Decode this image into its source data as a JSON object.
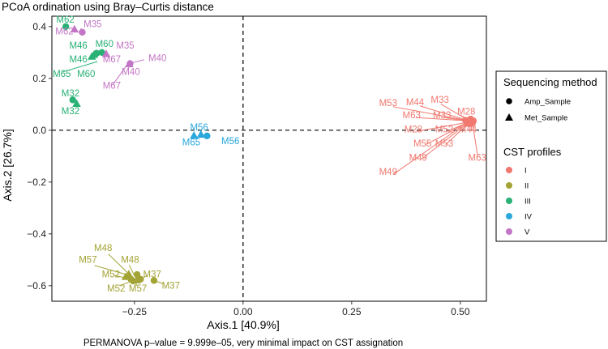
{
  "chart_data": {
    "type": "scatter",
    "title": "PCoA ordination using Bray–Curtis distance",
    "xlabel": "Axis.1   [40.9%]",
    "ylabel": "Axis.2   [26.7%]",
    "caption": "PERMANOVA p–value = 9.999e–05, very minimal impact on CST assignation",
    "xlim": [
      -0.44,
      0.56
    ],
    "ylim": [
      -0.66,
      0.44
    ],
    "x_ticks": [
      -0.25,
      0.0,
      0.25,
      0.5
    ],
    "x_tick_labels": [
      "−0.25",
      "0.00",
      "0.25",
      "0.50"
    ],
    "y_ticks": [
      0.4,
      0.2,
      0.0,
      -0.2,
      -0.4,
      -0.6
    ],
    "y_tick_labels": [
      "0.4",
      "0.2",
      "0.0",
      "−0.2",
      "−0.4",
      "−0.6"
    ],
    "reference_lines": {
      "x": 0,
      "y": 0,
      "style": "dashed"
    },
    "grid": false,
    "legends": [
      {
        "title": "Sequencing method",
        "entries": [
          {
            "label": "Amp_Sample",
            "shape": "circle"
          },
          {
            "label": "Met_Sample",
            "shape": "triangle"
          }
        ]
      },
      {
        "title": "CST profiles",
        "entries": [
          {
            "label": "I",
            "color": "#f0786f"
          },
          {
            "label": "II",
            "color": "#a3a336"
          },
          {
            "label": "III",
            "color": "#29b176"
          },
          {
            "label": "IV",
            "color": "#2aa8dc"
          },
          {
            "label": "V",
            "color": "#c375c6"
          }
        ]
      }
    ],
    "colors": {
      "I": "#f0786f",
      "II": "#a3a336",
      "III": "#29b176",
      "IV": "#2aa8dc",
      "V": "#c375c6"
    },
    "points": [
      {
        "x": -0.408,
        "y": 0.4,
        "shape": "circle",
        "cst": "III"
      },
      {
        "x": -0.388,
        "y": 0.39,
        "shape": "triangle",
        "cst": "V"
      },
      {
        "x": -0.37,
        "y": 0.378,
        "shape": "circle",
        "cst": "V"
      },
      {
        "x": -0.343,
        "y": 0.292,
        "shape": "triangle",
        "cst": "III"
      },
      {
        "x": -0.348,
        "y": 0.285,
        "shape": "triangle",
        "cst": "III"
      },
      {
        "x": -0.337,
        "y": 0.297,
        "shape": "circle",
        "cst": "III"
      },
      {
        "x": -0.325,
        "y": 0.3,
        "shape": "circle",
        "cst": "III"
      },
      {
        "x": -0.315,
        "y": 0.295,
        "shape": "triangle",
        "cst": "V"
      },
      {
        "x": -0.26,
        "y": 0.257,
        "shape": "circle",
        "cst": "V"
      },
      {
        "x": -0.262,
        "y": 0.256,
        "shape": "triangle",
        "cst": "V"
      },
      {
        "x": -0.392,
        "y": 0.117,
        "shape": "circle",
        "cst": "III"
      },
      {
        "x": -0.383,
        "y": 0.103,
        "shape": "triangle",
        "cst": "III"
      },
      {
        "x": -0.113,
        "y": -0.02,
        "shape": "triangle",
        "cst": "IV"
      },
      {
        "x": -0.097,
        "y": -0.016,
        "shape": "triangle",
        "cst": "IV"
      },
      {
        "x": -0.083,
        "y": -0.022,
        "shape": "circle",
        "cst": "IV"
      },
      {
        "x": 0.518,
        "y": 0.037,
        "shape": "triangle",
        "cst": "I"
      },
      {
        "x": 0.522,
        "y": 0.04,
        "shape": "circle",
        "cst": "I"
      },
      {
        "x": 0.515,
        "y": 0.03,
        "shape": "circle",
        "cst": "I"
      },
      {
        "x": 0.526,
        "y": 0.034,
        "shape": "triangle",
        "cst": "I"
      },
      {
        "x": 0.512,
        "y": 0.038,
        "shape": "circle",
        "cst": "I"
      },
      {
        "x": 0.528,
        "y": 0.029,
        "shape": "circle",
        "cst": "I"
      },
      {
        "x": 0.52,
        "y": 0.026,
        "shape": "triangle",
        "cst": "I"
      },
      {
        "x": 0.524,
        "y": 0.043,
        "shape": "circle",
        "cst": "I"
      },
      {
        "x": 0.516,
        "y": 0.033,
        "shape": "triangle",
        "cst": "I"
      },
      {
        "x": 0.53,
        "y": 0.036,
        "shape": "circle",
        "cst": "I"
      },
      {
        "x": -0.244,
        "y": -0.557,
        "shape": "circle",
        "cst": "II"
      },
      {
        "x": -0.263,
        "y": -0.555,
        "shape": "triangle",
        "cst": "II"
      },
      {
        "x": -0.258,
        "y": -0.575,
        "shape": "circle",
        "cst": "II"
      },
      {
        "x": -0.253,
        "y": -0.582,
        "shape": "circle",
        "cst": "II"
      },
      {
        "x": -0.245,
        "y": -0.578,
        "shape": "triangle",
        "cst": "II"
      },
      {
        "x": -0.236,
        "y": -0.575,
        "shape": "circle",
        "cst": "II"
      },
      {
        "x": -0.205,
        "y": -0.58,
        "shape": "circle",
        "cst": "II"
      },
      {
        "x": -0.27,
        "y": -0.565,
        "shape": "triangle",
        "cst": "II"
      }
    ],
    "labels": [
      {
        "text": "M62",
        "x": -0.43,
        "y": 0.415,
        "cst": "III",
        "anchor": "start"
      },
      {
        "text": "M62",
        "x": -0.432,
        "y": 0.37,
        "cst": "V",
        "anchor": "start"
      },
      {
        "text": "M35",
        "x": -0.367,
        "y": 0.398,
        "cst": "V",
        "anchor": "start"
      },
      {
        "text": "M46",
        "x": -0.4,
        "y": 0.315,
        "cst": "III",
        "anchor": "start"
      },
      {
        "text": "M60",
        "x": -0.34,
        "y": 0.322,
        "cst": "III",
        "anchor": "start"
      },
      {
        "text": "M35",
        "x": -0.292,
        "y": 0.315,
        "cst": "V",
        "anchor": "start"
      },
      {
        "text": "M46",
        "x": -0.4,
        "y": 0.262,
        "cst": "III",
        "anchor": "start"
      },
      {
        "text": "M67",
        "x": -0.323,
        "y": 0.262,
        "cst": "V",
        "anchor": "start"
      },
      {
        "text": "M40",
        "x": -0.218,
        "y": 0.266,
        "cst": "V",
        "anchor": "start"
      },
      {
        "text": "M65",
        "x": -0.438,
        "y": 0.206,
        "cst": "III",
        "anchor": "start"
      },
      {
        "text": "M60",
        "x": -0.382,
        "y": 0.206,
        "cst": "III",
        "anchor": "start"
      },
      {
        "text": "M40",
        "x": -0.279,
        "y": 0.213,
        "cst": "V",
        "anchor": "start"
      },
      {
        "text": "M67",
        "x": -0.323,
        "y": 0.16,
        "cst": "V",
        "anchor": "start"
      },
      {
        "text": "M32",
        "x": -0.418,
        "y": 0.13,
        "cst": "III",
        "anchor": "start"
      },
      {
        "text": "M32",
        "x": -0.418,
        "y": 0.062,
        "cst": "III",
        "anchor": "start"
      },
      {
        "text": "M56",
        "x": -0.122,
        "y": 0.0,
        "cst": "IV",
        "anchor": "start"
      },
      {
        "text": "M65",
        "x": -0.14,
        "y": -0.058,
        "cst": "IV",
        "anchor": "start"
      },
      {
        "text": "M56",
        "x": -0.05,
        "y": -0.053,
        "cst": "IV",
        "anchor": "start"
      },
      {
        "text": "M53",
        "x": 0.313,
        "y": 0.093,
        "cst": "I",
        "anchor": "start"
      },
      {
        "text": "M44",
        "x": 0.375,
        "y": 0.097,
        "cst": "I",
        "anchor": "start"
      },
      {
        "text": "M33",
        "x": 0.432,
        "y": 0.106,
        "cst": "I",
        "anchor": "start"
      },
      {
        "text": "M63",
        "x": 0.367,
        "y": 0.046,
        "cst": "I",
        "anchor": "start"
      },
      {
        "text": "M33",
        "x": 0.437,
        "y": 0.046,
        "cst": "I",
        "anchor": "start"
      },
      {
        "text": "M28",
        "x": 0.493,
        "y": 0.061,
        "cst": "I",
        "anchor": "start"
      },
      {
        "text": "M28",
        "x": 0.371,
        "y": -0.009,
        "cst": "I",
        "anchor": "start"
      },
      {
        "text": "M52",
        "x": 0.442,
        "y": -0.009,
        "cst": "I",
        "anchor": "start"
      },
      {
        "text": "M44",
        "x": 0.496,
        "y": -0.009,
        "cst": "I",
        "anchor": "start"
      },
      {
        "text": "M55",
        "x": 0.392,
        "y": -0.063,
        "cst": "I",
        "anchor": "start"
      },
      {
        "text": "M53",
        "x": 0.442,
        "y": -0.063,
        "cst": "I",
        "anchor": "start"
      },
      {
        "text": "M49",
        "x": 0.382,
        "y": -0.118,
        "cst": "I",
        "anchor": "start"
      },
      {
        "text": "M63",
        "x": 0.518,
        "y": -0.118,
        "cst": "I",
        "anchor": "start"
      },
      {
        "text": "M49",
        "x": 0.313,
        "y": -0.173,
        "cst": "I",
        "anchor": "start"
      },
      {
        "text": "M48",
        "x": -0.343,
        "y": -0.466,
        "cst": "II",
        "anchor": "start"
      },
      {
        "text": "M57",
        "x": -0.378,
        "y": -0.512,
        "cst": "II",
        "anchor": "start"
      },
      {
        "text": "M48",
        "x": -0.281,
        "y": -0.512,
        "cst": "II",
        "anchor": "start"
      },
      {
        "text": "M52",
        "x": -0.325,
        "y": -0.568,
        "cst": "II",
        "anchor": "start"
      },
      {
        "text": "M37",
        "x": -0.23,
        "y": -0.568,
        "cst": "II",
        "anchor": "start"
      },
      {
        "text": "M52",
        "x": -0.313,
        "y": -0.622,
        "cst": "II",
        "anchor": "start"
      },
      {
        "text": "M57",
        "x": -0.263,
        "y": -0.622,
        "cst": "II",
        "anchor": "start"
      },
      {
        "text": "M37",
        "x": -0.187,
        "y": -0.612,
        "cst": "II",
        "anchor": "start"
      }
    ],
    "label_lines": [
      {
        "from": [
          -0.335,
          0.265
        ],
        "to": [
          -0.415,
          0.225
        ],
        "cst": "III"
      },
      {
        "from": [
          -0.262,
          0.257
        ],
        "to": [
          -0.228,
          0.272
        ],
        "cst": "V"
      },
      {
        "from": [
          -0.262,
          0.257
        ],
        "to": [
          -0.264,
          0.232
        ],
        "cst": "V"
      },
      {
        "from": [
          -0.265,
          0.257
        ],
        "to": [
          -0.3,
          0.175
        ],
        "cst": "V"
      },
      {
        "from": [
          -0.378,
          0.378
        ],
        "to": [
          -0.372,
          0.393
        ],
        "cst": "V"
      },
      {
        "from": [
          0.518,
          0.037
        ],
        "to": [
          0.345,
          0.091
        ],
        "cst": "I"
      },
      {
        "from": [
          0.518,
          0.037
        ],
        "to": [
          0.407,
          0.094
        ],
        "cst": "I"
      },
      {
        "from": [
          0.52,
          0.037
        ],
        "to": [
          0.455,
          0.101
        ],
        "cst": "I"
      },
      {
        "from": [
          0.518,
          0.036
        ],
        "to": [
          0.397,
          0.049
        ],
        "cst": "I"
      },
      {
        "from": [
          0.52,
          0.035
        ],
        "to": [
          0.462,
          0.049
        ],
        "cst": "I"
      },
      {
        "from": [
          0.522,
          0.038
        ],
        "to": [
          0.5,
          0.058
        ],
        "cst": "I"
      },
      {
        "from": [
          0.515,
          0.03
        ],
        "to": [
          0.4,
          -0.004
        ],
        "cst": "I"
      },
      {
        "from": [
          0.517,
          0.029
        ],
        "to": [
          0.47,
          -0.004
        ],
        "cst": "I"
      },
      {
        "from": [
          0.526,
          0.031
        ],
        "to": [
          0.525,
          -0.004
        ],
        "cst": "I"
      },
      {
        "from": [
          0.515,
          0.028
        ],
        "to": [
          0.42,
          -0.056
        ],
        "cst": "I"
      },
      {
        "from": [
          0.519,
          0.027
        ],
        "to": [
          0.466,
          -0.056
        ],
        "cst": "I"
      },
      {
        "from": [
          0.516,
          0.026
        ],
        "to": [
          0.41,
          -0.112
        ],
        "cst": "I"
      },
      {
        "from": [
          0.528,
          0.027
        ],
        "to": [
          0.54,
          -0.1
        ],
        "cst": "I"
      },
      {
        "from": [
          0.515,
          0.029
        ],
        "to": [
          0.346,
          -0.17
        ],
        "cst": "I"
      },
      {
        "from": [
          -0.262,
          -0.556
        ],
        "to": [
          -0.31,
          -0.478
        ],
        "cst": "II"
      },
      {
        "from": [
          -0.262,
          -0.56
        ],
        "to": [
          -0.342,
          -0.522
        ],
        "cst": "II"
      },
      {
        "from": [
          -0.25,
          -0.562
        ],
        "to": [
          -0.262,
          -0.52
        ],
        "cst": "II"
      },
      {
        "from": [
          -0.258,
          -0.575
        ],
        "to": [
          -0.296,
          -0.56
        ],
        "cst": "II"
      },
      {
        "from": [
          -0.236,
          -0.575
        ],
        "to": [
          -0.22,
          -0.56
        ],
        "cst": "II"
      },
      {
        "from": [
          -0.255,
          -0.582
        ],
        "to": [
          -0.285,
          -0.6
        ],
        "cst": "II"
      },
      {
        "from": [
          -0.248,
          -0.58
        ],
        "to": [
          -0.245,
          -0.6
        ],
        "cst": "II"
      },
      {
        "from": [
          -0.205,
          -0.58
        ],
        "to": [
          -0.185,
          -0.592
        ],
        "cst": "II"
      }
    ]
  }
}
